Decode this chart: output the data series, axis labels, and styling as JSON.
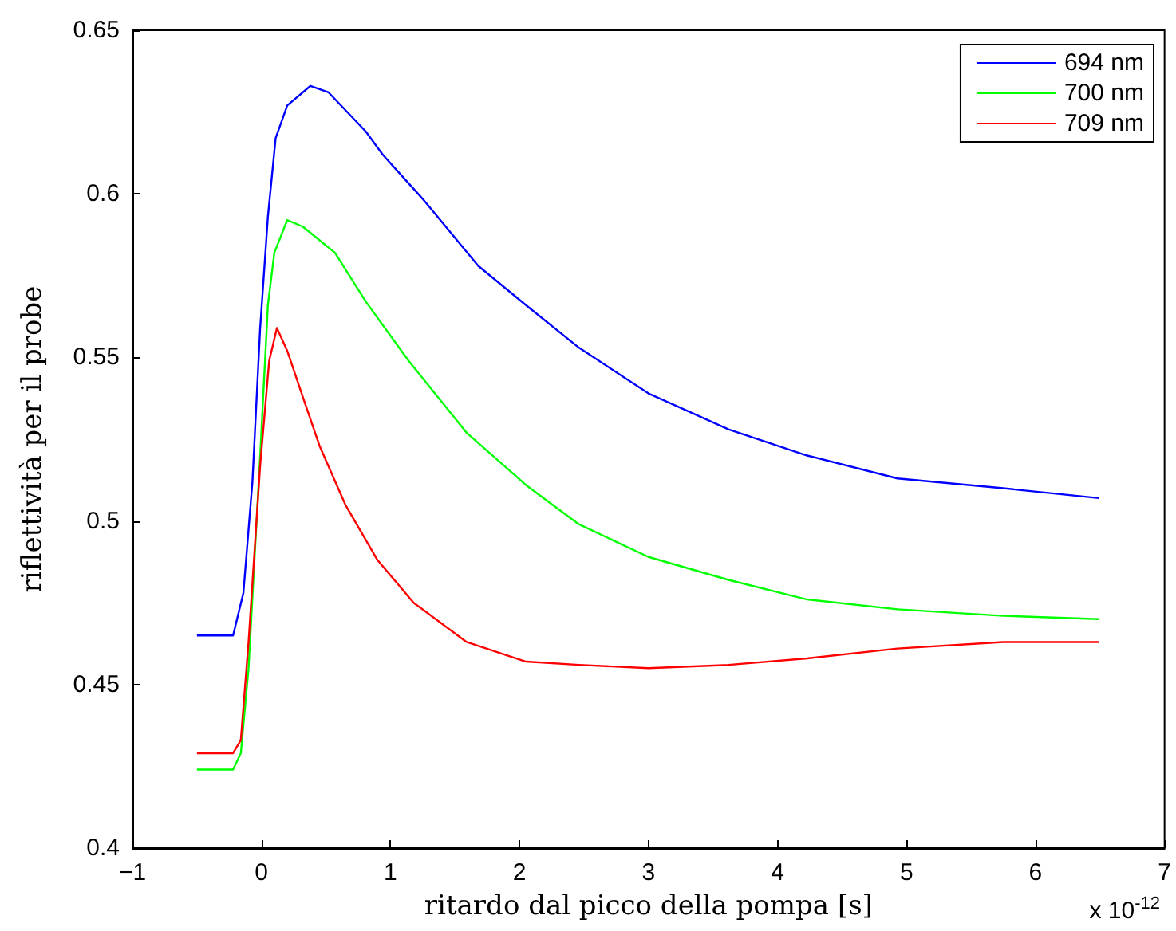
{
  "chart_data": {
    "type": "line",
    "xlabel": "ritardo dal picco della pompa [s]",
    "ylabel": "riflettività per il probe",
    "annotations": [
      "x 10$^{-12}$"
    ],
    "xlim": [
      -1,
      7
    ],
    "xticks": [
      -1,
      0,
      1,
      2,
      3,
      4,
      5,
      6,
      7
    ],
    "ylim": [
      0.4,
      0.65
    ],
    "yticks": [
      0.4,
      0.45,
      0.5,
      0.55,
      0.6,
      0.65
    ],
    "grid": false,
    "legend": "top right",
    "marker": "none",
    "line_style": "solid",
    "series": [
      {
        "name": "694 nm",
        "color": "#0000ff",
        "x": [
          -0.5,
          -0.22,
          -0.14,
          -0.07,
          -0.01,
          0.05,
          0.11,
          0.2,
          0.38,
          0.52,
          0.81,
          0.94,
          1.26,
          1.68,
          2.05,
          2.46,
          3.0,
          3.62,
          4.23,
          4.93,
          5.75,
          6.49
        ],
        "values": [
          0.465,
          0.465,
          0.478,
          0.512,
          0.559,
          0.593,
          0.617,
          0.627,
          0.633,
          0.631,
          0.619,
          0.612,
          0.598,
          0.578,
          0.566,
          0.553,
          0.539,
          0.528,
          0.52,
          0.513,
          0.51,
          0.507
        ]
      },
      {
        "name": "700 nm",
        "color": "#00ff00",
        "x": [
          -0.5,
          -0.22,
          -0.16,
          -0.1,
          -0.01,
          0.05,
          0.1,
          0.2,
          0.32,
          0.57,
          0.81,
          1.14,
          1.59,
          2.05,
          2.46,
          3.0,
          3.62,
          4.23,
          4.93,
          5.75,
          6.49
        ],
        "values": [
          0.424,
          0.424,
          0.429,
          0.455,
          0.52,
          0.566,
          0.582,
          0.592,
          0.59,
          0.582,
          0.567,
          0.549,
          0.527,
          0.511,
          0.499,
          0.489,
          0.482,
          0.476,
          0.473,
          0.471,
          0.47
        ]
      },
      {
        "name": "709 nm",
        "color": "#ff0000",
        "x": [
          -0.5,
          -0.22,
          -0.16,
          -0.1,
          -0.01,
          0.06,
          0.12,
          0.2,
          0.32,
          0.45,
          0.65,
          0.9,
          1.18,
          1.59,
          2.05,
          2.46,
          3.0,
          3.62,
          4.23,
          4.93,
          5.75,
          6.49
        ],
        "values": [
          0.429,
          0.429,
          0.433,
          0.463,
          0.517,
          0.549,
          0.559,
          0.552,
          0.538,
          0.523,
          0.505,
          0.488,
          0.475,
          0.463,
          0.457,
          0.456,
          0.455,
          0.456,
          0.458,
          0.461,
          0.463,
          0.463
        ]
      }
    ]
  }
}
